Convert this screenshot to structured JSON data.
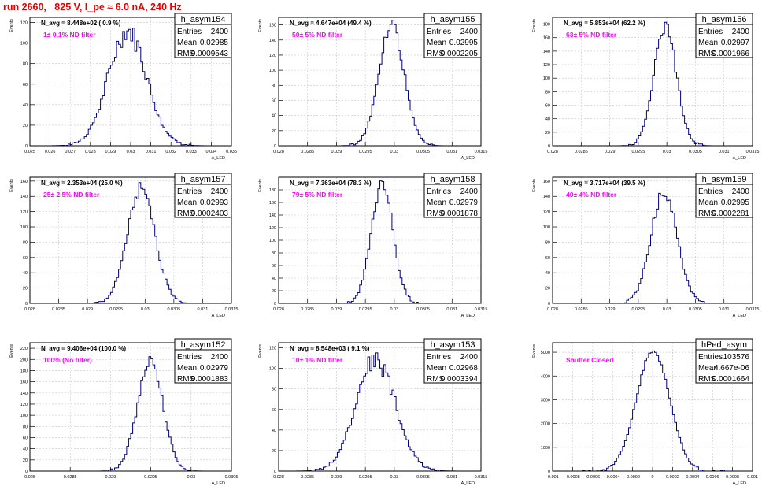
{
  "title": "run 2660,   825 V, I_pe ≈ 6.0 nA, 240 Hz",
  "colors": {
    "title": "#e00000",
    "annotation": "#ff00ff",
    "histogram": "#000080",
    "grid": "#c8c8c8"
  },
  "chart_data": [
    {
      "type": "histogram",
      "name": "h_asym154",
      "entries": "2400",
      "mean": "0.02985",
      "rms": "0.0009543",
      "navg": "N_avg = 8.448e+02 ( 0.9 %)",
      "annotation": "1± 0.1% ND filter",
      "ylabel": "Events",
      "xlabel": "A_LED",
      "xlim": [
        0.025,
        0.035
      ],
      "ylim": [
        0,
        125
      ],
      "xticks": [
        "0.025",
        "0.026",
        "0.027",
        "0.028",
        "0.029",
        "0.03",
        "0.031",
        "0.032",
        "0.033",
        "0.034",
        "0.035"
      ],
      "yticks": [
        0,
        20,
        40,
        60,
        80,
        100,
        120
      ],
      "center": 0.02985,
      "sigma": 0.00095,
      "peak": 112,
      "jitter": 0.1
    },
    {
      "type": "histogram",
      "name": "h_asym155",
      "entries": "2400",
      "mean": "0.02995",
      "rms": "0.0002205",
      "navg": "N_avg = 4.647e+04 (49.4 %)",
      "annotation": "50± 5% ND filter",
      "ylabel": "Events",
      "xlabel": "A_LED",
      "xlim": [
        0.028,
        0.0315
      ],
      "ylim": [
        0,
        170
      ],
      "xticks": [
        "0.028",
        "0.0285",
        "0.029",
        "0.0295",
        "0.03",
        "0.0305",
        "0.031",
        "0.0315"
      ],
      "yticks": [
        0,
        20,
        40,
        60,
        80,
        100,
        120,
        140,
        160
      ],
      "center": 0.02995,
      "sigma": 0.00022,
      "peak": 158,
      "jitter": 0.06
    },
    {
      "type": "histogram",
      "name": "h_asym156",
      "entries": "2400",
      "mean": "0.02997",
      "rms": "0.0001966",
      "navg": "N_avg = 5.853e+04 (62.2 %)",
      "annotation": "63± 5% ND filter",
      "ylabel": "Events",
      "xlabel": "A_LED",
      "xlim": [
        0.028,
        0.0315
      ],
      "ylim": [
        0,
        190
      ],
      "xticks": [
        "0.028",
        "0.0285",
        "0.029",
        "0.0295",
        "0.03",
        "0.0305",
        "0.031",
        "0.0315"
      ],
      "yticks": [
        0,
        20,
        40,
        60,
        80,
        100,
        120,
        140,
        160,
        180
      ],
      "center": 0.02997,
      "sigma": 0.000197,
      "peak": 178,
      "jitter": 0.06
    },
    {
      "type": "histogram",
      "name": "h_asym157",
      "entries": "2400",
      "mean": "0.02993",
      "rms": "0.0002403",
      "navg": "N_avg = 2.353e+04 (25.0 %)",
      "annotation": "25± 2.5% ND filter",
      "ylabel": "Events",
      "xlabel": "A_LED",
      "xlim": [
        0.028,
        0.0315
      ],
      "ylim": [
        0,
        165
      ],
      "xticks": [
        "0.028",
        "0.0285",
        "0.029",
        "0.0295",
        "0.03",
        "0.0305",
        "0.031",
        "0.0315"
      ],
      "yticks": [
        0,
        20,
        40,
        60,
        80,
        100,
        120,
        140,
        160
      ],
      "center": 0.02993,
      "sigma": 0.00024,
      "peak": 150,
      "jitter": 0.06
    },
    {
      "type": "histogram",
      "name": "h_asym158",
      "entries": "2400",
      "mean": "0.02979",
      "rms": "0.0001878",
      "navg": "N_avg = 7.363e+04 (78.3 %)",
      "annotation": "79± 5% ND filter",
      "ylabel": "Events",
      "xlabel": "A_LED",
      "xlim": [
        0.028,
        0.0315
      ],
      "ylim": [
        0,
        200
      ],
      "xticks": [
        "0.028",
        "0.0285",
        "0.029",
        "0.0295",
        "0.03",
        "0.0305",
        "0.031",
        "0.0315"
      ],
      "yticks": [
        0,
        20,
        40,
        60,
        80,
        100,
        120,
        140,
        160,
        180
      ],
      "center": 0.02979,
      "sigma": 0.000188,
      "peak": 190,
      "jitter": 0.06
    },
    {
      "type": "histogram",
      "name": "h_asym159",
      "entries": "2400",
      "mean": "0.02995",
      "rms": "0.0002281",
      "navg": "N_avg = 3.717e+04 (39.5 %)",
      "annotation": "40± 4% ND filter",
      "ylabel": "Events",
      "xlabel": "A_LED",
      "xlim": [
        0.028,
        0.0315
      ],
      "ylim": [
        0,
        165
      ],
      "xticks": [
        "0.028",
        "0.0285",
        "0.029",
        "0.0295",
        "0.03",
        "0.0305",
        "0.031",
        "0.0315"
      ],
      "yticks": [
        0,
        20,
        40,
        60,
        80,
        100,
        120,
        140,
        160
      ],
      "center": 0.02995,
      "sigma": 0.000228,
      "peak": 145,
      "jitter": 0.06
    },
    {
      "type": "histogram",
      "name": "h_asym152",
      "entries": "2400",
      "mean": "0.02979",
      "rms": "0.0001883",
      "navg": "N_avg = 9.406e+04 (100.0 %)",
      "annotation": "100% (No filter)",
      "ylabel": "Events",
      "xlabel": "A_LED",
      "xlim": [
        0.028,
        0.031
      ],
      "ylim": [
        0,
        230
      ],
      "xticks": [
        "0.028",
        "0.0285",
        "0.029",
        "0.0295",
        "0.03",
        "0.0305"
      ],
      "yticks": [
        0,
        20,
        40,
        60,
        80,
        100,
        120,
        140,
        160,
        180,
        200,
        220
      ],
      "center": 0.02979,
      "sigma": 0.000188,
      "peak": 200,
      "jitter": 0.06
    },
    {
      "type": "histogram",
      "name": "h_asym153",
      "entries": "2400",
      "mean": "0.02968",
      "rms": "0.0003394",
      "navg": "N_avg = 8.548e+03 ( 9.1 %)",
      "annotation": "10± 1% ND filter",
      "ylabel": "Events",
      "xlabel": "A_LED",
      "xlim": [
        0.028,
        0.0315
      ],
      "ylim": [
        0,
        125
      ],
      "xticks": [
        "0.028",
        "0.0285",
        "0.029",
        "0.0295",
        "0.03",
        "0.0305",
        "0.031",
        "0.0315"
      ],
      "yticks": [
        0,
        20,
        40,
        60,
        80,
        100,
        120
      ],
      "center": 0.02968,
      "sigma": 0.00034,
      "peak": 108,
      "jitter": 0.09
    },
    {
      "type": "histogram",
      "name": "hPed_asym",
      "entries": "103576",
      "mean": "4.667e-06",
      "rms": "0.0001664",
      "navg": "",
      "annotation": "Shutter Closed",
      "ylabel": "Events",
      "xlabel": "A_LED",
      "xlim": [
        -0.001,
        0.001
      ],
      "ylim": [
        0,
        5400
      ],
      "xticks": [
        "-0.001",
        "-0.0008",
        "-0.0006",
        "-0.0004",
        "-0.0002",
        "0",
        "0.0002",
        "0.0004",
        "0.0006",
        "0.0008",
        "0.001"
      ],
      "yticks": [
        0,
        1000,
        2000,
        3000,
        4000,
        5000
      ],
      "center": 5e-06,
      "sigma": 0.000166,
      "peak": 5050,
      "jitter": 0.01
    }
  ]
}
